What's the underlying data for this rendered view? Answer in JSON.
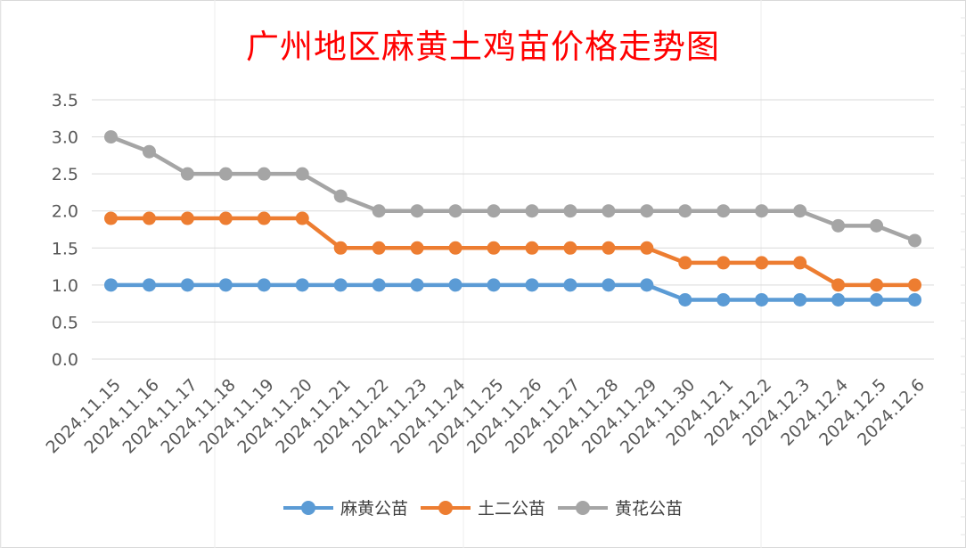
{
  "chart_data": {
    "type": "line",
    "title": "广州地区麻黄土鸡苗价格走势图",
    "categories": [
      "2024.11.15",
      "2024.11.16",
      "2024.11.17",
      "2024.11.18",
      "2024.11.19",
      "2024.11.20",
      "2024.11.21",
      "2024.11.22",
      "2024.11.23",
      "2024.11.24",
      "2024.11.25",
      "2024.11.26",
      "2024.11.27",
      "2024.11.28",
      "2024.11.29",
      "2024.11.30",
      "2024.12.1",
      "2024.12.2",
      "2024.12.3",
      "2024.12.4",
      "2024.12.5",
      "2024.12.6"
    ],
    "ylim": [
      0,
      3.5
    ],
    "yticks": [
      "0.0",
      "0.5",
      "1.0",
      "1.5",
      "2.0",
      "2.5",
      "3.0",
      "3.5"
    ],
    "grid": true,
    "legend_position": "bottom",
    "series": [
      {
        "name": "麻黄公苗",
        "color": "#5b9bd5",
        "values": [
          1,
          1,
          1,
          1,
          1,
          1,
          1,
          1,
          1,
          1,
          1,
          1,
          1,
          1,
          1,
          0.8,
          0.8,
          0.8,
          0.8,
          0.8,
          0.8,
          0.8
        ]
      },
      {
        "name": "土二公苗",
        "color": "#ed7d31",
        "values": [
          1.9,
          1.9,
          1.9,
          1.9,
          1.9,
          1.9,
          1.5,
          1.5,
          1.5,
          1.5,
          1.5,
          1.5,
          1.5,
          1.5,
          1.5,
          1.3,
          1.3,
          1.3,
          1.3,
          1,
          1,
          1
        ]
      },
      {
        "name": "黄花公苗",
        "color": "#a5a5a5",
        "values": [
          3,
          2.8,
          2.5,
          2.5,
          2.5,
          2.5,
          2.2,
          2,
          2,
          2,
          2,
          2,
          2,
          2,
          2,
          2,
          2,
          2,
          2,
          1.8,
          1.8,
          1.6
        ]
      }
    ]
  }
}
